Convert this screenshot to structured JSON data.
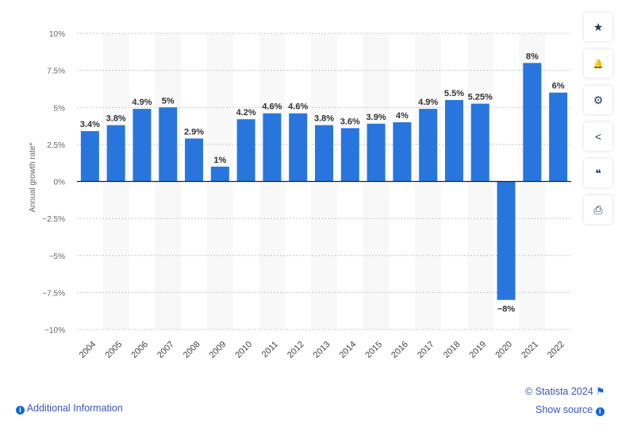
{
  "chart_data": {
    "type": "bar",
    "categories": [
      "2004",
      "2005",
      "2006",
      "2007",
      "2008",
      "2009",
      "2010",
      "2011",
      "2012",
      "2013",
      "2014",
      "2015",
      "2016",
      "2017",
      "2018",
      "2019",
      "2020",
      "2021",
      "2022"
    ],
    "values": [
      3.4,
      3.8,
      4.9,
      5,
      2.9,
      1,
      4.2,
      4.6,
      4.6,
      3.8,
      3.6,
      3.9,
      4,
      4.9,
      5.5,
      5.25,
      -8,
      8,
      6
    ],
    "data_labels": [
      "3.4%",
      "3.8%",
      "4.9%",
      "5%",
      "2.9%",
      "1%",
      "4.2%",
      "4.6%",
      "4.6%",
      "3.8%",
      "3.6%",
      "3.9%",
      "4%",
      "4.9%",
      "5.5%",
      "5.25%",
      "−8%",
      "8%",
      "6%"
    ],
    "ylabel": "Annual growth rate*",
    "xlabel": "",
    "ylim": [
      -10,
      10
    ],
    "yticks": [
      10,
      7.5,
      5,
      2.5,
      0,
      -2.5,
      -5,
      -7.5,
      -10
    ],
    "ytick_labels": [
      "10%",
      "7.5%",
      "5%",
      "2.5%",
      "0%",
      "−2.5%",
      "−5%",
      "−7.5%",
      "−10%"
    ],
    "grid": true,
    "bar_color": "#2876dd"
  },
  "sidebar": {
    "icons": [
      "star-icon",
      "bell-icon",
      "gear-icon",
      "share-icon",
      "quote-icon",
      "print-icon"
    ],
    "glyphs": [
      "★",
      "🔔",
      "⚙",
      "<",
      "❝",
      "⎙"
    ]
  },
  "footer": {
    "additional_info": "Additional Information",
    "copyright": "© Statista 2024",
    "show_source": "Show source",
    "info_glyph": "i",
    "flag_glyph": "⚑"
  }
}
